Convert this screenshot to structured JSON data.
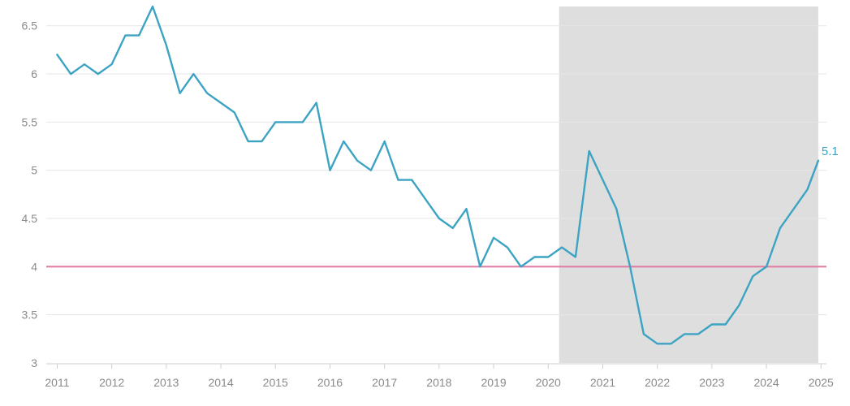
{
  "chart_data": {
    "type": "line",
    "title": "",
    "xlabel": "",
    "ylabel": "",
    "xlim": [
      2010.8,
      2025.1
    ],
    "ylim": [
      3,
      6.7
    ],
    "y_ticks": [
      "3",
      "3.5",
      "4",
      "4.5",
      "5",
      "5.5",
      "6",
      "6.5"
    ],
    "y_tick_values": [
      3,
      3.5,
      4,
      4.5,
      5,
      5.5,
      6,
      6.5
    ],
    "x_ticks": [
      "2011",
      "2012",
      "2013",
      "2014",
      "2015",
      "2016",
      "2017",
      "2018",
      "2019",
      "2020",
      "2021",
      "2022",
      "2023",
      "2024",
      "2025"
    ],
    "x_tick_values": [
      2011,
      2012,
      2013,
      2014,
      2015,
      2016,
      2017,
      2018,
      2019,
      2020,
      2021,
      2022,
      2023,
      2024,
      2025
    ],
    "grid": true,
    "shaded_region": {
      "x_start": 2020.2,
      "x_end": 2024.95,
      "color": "#dedede"
    },
    "reference_line": {
      "y": 4,
      "color": "#e07ba3"
    },
    "series": [
      {
        "color": "#3ca3c3",
        "end_label": "5.1",
        "x": [
          2011.0,
          2011.25,
          2011.5,
          2011.75,
          2012.0,
          2012.25,
          2012.5,
          2012.75,
          2013.0,
          2013.25,
          2013.5,
          2013.75,
          2014.0,
          2014.25,
          2014.5,
          2014.75,
          2015.0,
          2015.25,
          2015.5,
          2015.75,
          2016.0,
          2016.25,
          2016.5,
          2016.75,
          2017.0,
          2017.25,
          2017.5,
          2017.75,
          2018.0,
          2018.25,
          2018.5,
          2018.75,
          2019.0,
          2019.25,
          2019.5,
          2019.75,
          2020.0,
          2020.25,
          2020.5,
          2020.75,
          2021.0,
          2021.25,
          2021.5,
          2021.75,
          2022.0,
          2022.25,
          2022.5,
          2022.75,
          2023.0,
          2023.25,
          2023.5,
          2023.75,
          2024.0,
          2024.25,
          2024.5,
          2024.75,
          2024.95
        ],
        "y": [
          6.2,
          6.0,
          6.1,
          6.0,
          6.1,
          6.4,
          6.4,
          6.7,
          6.3,
          5.8,
          6.0,
          5.8,
          5.7,
          5.6,
          5.3,
          5.3,
          5.5,
          5.5,
          5.5,
          5.7,
          5.0,
          5.3,
          5.1,
          5.0,
          5.3,
          4.9,
          4.9,
          4.7,
          4.5,
          4.4,
          4.6,
          4.0,
          4.3,
          4.2,
          4.0,
          4.1,
          4.1,
          4.2,
          4.1,
          5.2,
          4.9,
          4.6,
          4.0,
          3.3,
          3.2,
          3.2,
          3.3,
          3.3,
          3.4,
          3.4,
          3.6,
          3.9,
          4.0,
          4.4,
          4.6,
          4.8,
          5.1
        ]
      }
    ]
  }
}
